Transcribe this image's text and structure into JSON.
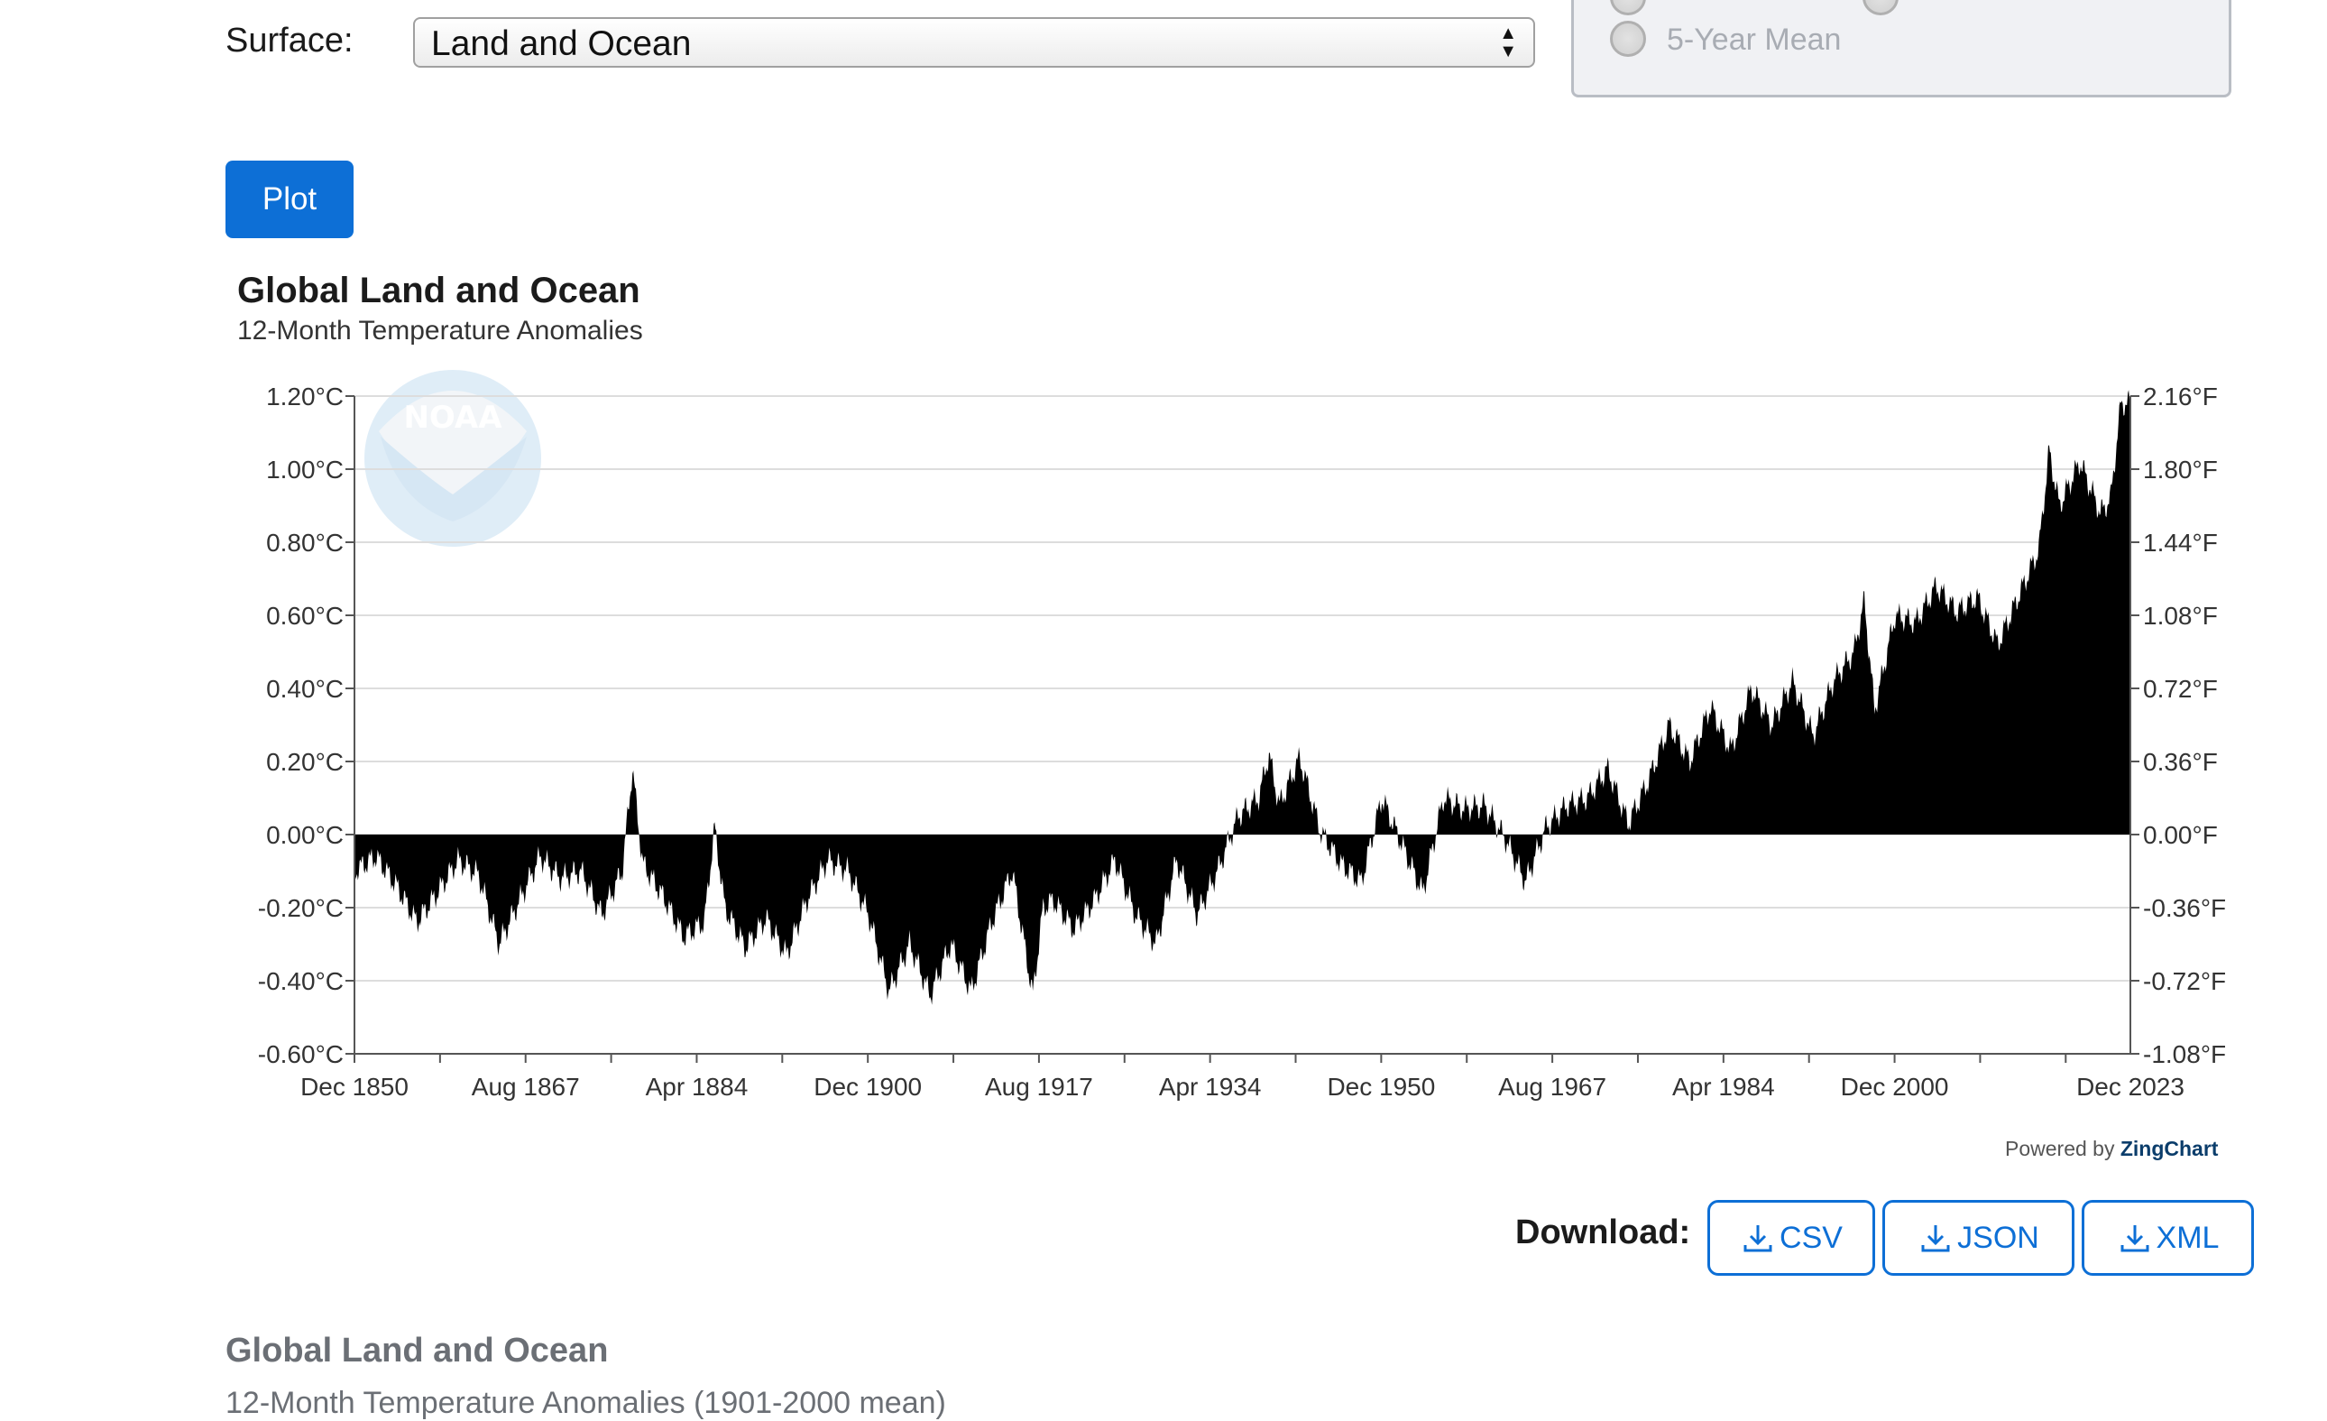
{
  "form": {
    "surface_label": "Surface:",
    "surface_value": "Land and Ocean",
    "radio_option": "5-Year Mean",
    "plot_button": "Plot"
  },
  "colors": {
    "primary": "#0d6fd6",
    "area_fill": "#000000",
    "grid": "#dddddd"
  },
  "chart_data": {
    "type": "area",
    "title": "Global Land and Ocean",
    "subtitle": "12-Month Temperature Anomalies",
    "x_start": "Dec 1850",
    "x_end": "Dec 2023",
    "x_tick_labels": [
      "Dec 1850",
      "Aug 1867",
      "Apr 1884",
      "Dec 1900",
      "Aug 1917",
      "Apr 1934",
      "Dec 1950",
      "Aug 1967",
      "Apr 1984",
      "Dec 2000",
      "Dec 2023"
    ],
    "y_tick_labels_c": [
      "1.20°C",
      "1.00°C",
      "0.80°C",
      "0.60°C",
      "0.40°C",
      "0.20°C",
      "0.00°C",
      "-0.20°C",
      "-0.40°C",
      "-0.60°C"
    ],
    "y_tick_labels_f": [
      "2.16°F",
      "1.80°F",
      "1.44°F",
      "1.08°F",
      "0.72°F",
      "0.36°F",
      "0.00°F",
      "-0.36°F",
      "-0.72°F",
      "-1.08°F"
    ],
    "ylim": [
      -0.6,
      1.2
    ],
    "grid": true,
    "series": [
      {
        "year": [
          1851,
          1853,
          1855,
          1857,
          1859,
          1861,
          1863,
          1865,
          1867,
          1869,
          1871,
          1873,
          1875,
          1877,
          1878,
          1879,
          1881,
          1883,
          1885,
          1886,
          1887,
          1889,
          1891,
          1893,
          1895,
          1897,
          1899,
          1901,
          1903,
          1905,
          1907,
          1909,
          1911,
          1913,
          1915,
          1917,
          1918,
          1919,
          1921,
          1923,
          1925,
          1927,
          1929,
          1931,
          1933,
          1935,
          1937,
          1939,
          1940,
          1941,
          1943,
          1945,
          1947,
          1949,
          1951,
          1953,
          1955,
          1957,
          1959,
          1961,
          1963,
          1965,
          1967,
          1969,
          1971,
          1973,
          1975,
          1977,
          1979,
          1981,
          1983,
          1985,
          1987,
          1989,
          1991,
          1993,
          1995,
          1997,
          1998,
          1999,
          2001,
          2003,
          2005,
          2007,
          2009,
          2011,
          2013,
          2015,
          2016,
          2017,
          2019,
          2021,
          2022,
          2023
        ],
        "values": [
          -0.1,
          -0.06,
          -0.14,
          -0.24,
          -0.16,
          -0.07,
          -0.11,
          -0.3,
          -0.18,
          -0.06,
          -0.12,
          -0.1,
          -0.22,
          -0.1,
          0.18,
          -0.08,
          -0.17,
          -0.28,
          -0.24,
          0.02,
          -0.2,
          -0.31,
          -0.23,
          -0.33,
          -0.18,
          -0.07,
          -0.1,
          -0.22,
          -0.43,
          -0.3,
          -0.44,
          -0.3,
          -0.43,
          -0.24,
          -0.1,
          -0.44,
          -0.2,
          -0.18,
          -0.26,
          -0.18,
          -0.07,
          -0.22,
          -0.3,
          -0.07,
          -0.22,
          -0.1,
          0.05,
          0.1,
          0.22,
          0.08,
          0.21,
          0.01,
          -0.08,
          -0.13,
          0.1,
          -0.03,
          -0.16,
          0.1,
          0.07,
          0.08,
          -0.01,
          -0.13,
          0.02,
          0.08,
          0.1,
          0.18,
          0.03,
          0.15,
          0.3,
          0.2,
          0.35,
          0.23,
          0.4,
          0.3,
          0.42,
          0.27,
          0.42,
          0.5,
          0.64,
          0.34,
          0.6,
          0.58,
          0.68,
          0.61,
          0.65,
          0.52,
          0.65,
          0.78,
          1.05,
          0.9,
          1.02,
          0.88,
          0.92,
          1.18
        ]
      }
    ]
  },
  "credits": {
    "powered_prefix": "Powered by",
    "powered_brand": "ZingChart"
  },
  "download": {
    "label": "Download:",
    "csv": "CSV",
    "json": "JSON",
    "xml": "XML"
  },
  "footer": {
    "title": "Global Land and Ocean",
    "subtitle": "12-Month Temperature Anomalies (1901-2000 mean)"
  }
}
